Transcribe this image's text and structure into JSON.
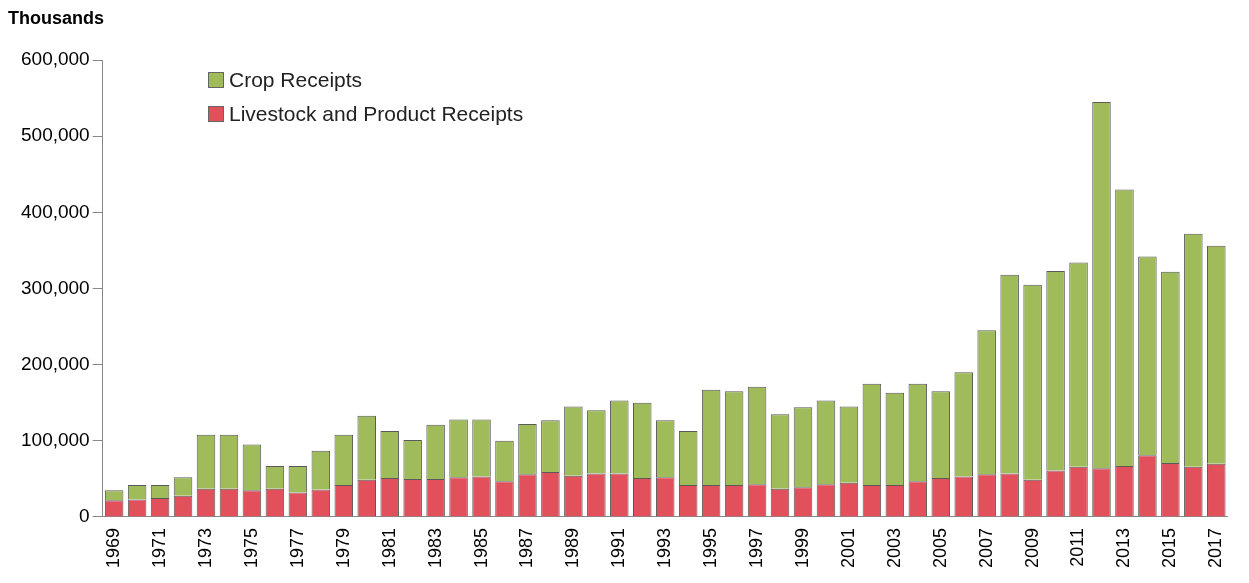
{
  "chart_data": {
    "type": "bar",
    "ylabel": "Thousands",
    "stacked": true,
    "legend": "top left",
    "grid": false,
    "categories": [
      "1969",
      null,
      "1971",
      null,
      "1973",
      null,
      "1975",
      null,
      "1977",
      null,
      "1979",
      null,
      "1981",
      null,
      "1983",
      null,
      "1985",
      null,
      "1987",
      null,
      "1989",
      null,
      "1991",
      null,
      "1993",
      null,
      "1995",
      null,
      "1997",
      null,
      "1999",
      null,
      "2001",
      null,
      "2003",
      null,
      "2005",
      null,
      "2007",
      null,
      "2009",
      null,
      "2011",
      null,
      "2013",
      null,
      "2015",
      null,
      "2017"
    ],
    "series": [
      {
        "name": "Livestock and Product Receipts",
        "color": "#e2505c",
        "values": [
          22000,
          23000,
          25000,
          28000,
          37000,
          37000,
          35000,
          37000,
          32000,
          36000,
          42000,
          49000,
          51000,
          50000,
          50000,
          52000,
          53000,
          47000,
          56000,
          59000,
          54000,
          57000,
          57000,
          51000,
          52000,
          42000,
          42000,
          42000,
          43000,
          37000,
          39000,
          43000,
          45000,
          42000,
          42000,
          47000,
          51000,
          53000,
          56000,
          57000,
          49000,
          61000,
          66000,
          64000,
          67000,
          81000,
          71000,
          66000,
          70000
        ]
      },
      {
        "name": "Crop Receipts",
        "color": "#9fbb5a",
        "values": [
          13000,
          19000,
          17000,
          24000,
          71000,
          71000,
          60000,
          30000,
          35000,
          51000,
          66000,
          84000,
          62000,
          51000,
          71000,
          76000,
          75000,
          53000,
          66000,
          68000,
          91000,
          83000,
          96000,
          99000,
          75000,
          71000,
          125000,
          123000,
          128000,
          98000,
          105000,
          110000,
          100000,
          133000,
          121000,
          128000,
          114000,
          137000,
          189000,
          261000,
          256000,
          262000,
          268000,
          481000,
          363000,
          261000,
          251000,
          306000,
          286000
        ]
      }
    ],
    "ylim": [
      0,
      600000
    ],
    "yticks": [
      {
        "value": 0,
        "label": "0"
      },
      {
        "value": 100000,
        "label": "100,000"
      },
      {
        "value": 200000,
        "label": "200,000"
      },
      {
        "value": 300000,
        "label": "300,000"
      },
      {
        "value": 400000,
        "label": "400,000"
      },
      {
        "value": 500000,
        "label": "500,000"
      },
      {
        "value": 600000,
        "label": "600,000"
      }
    ]
  }
}
